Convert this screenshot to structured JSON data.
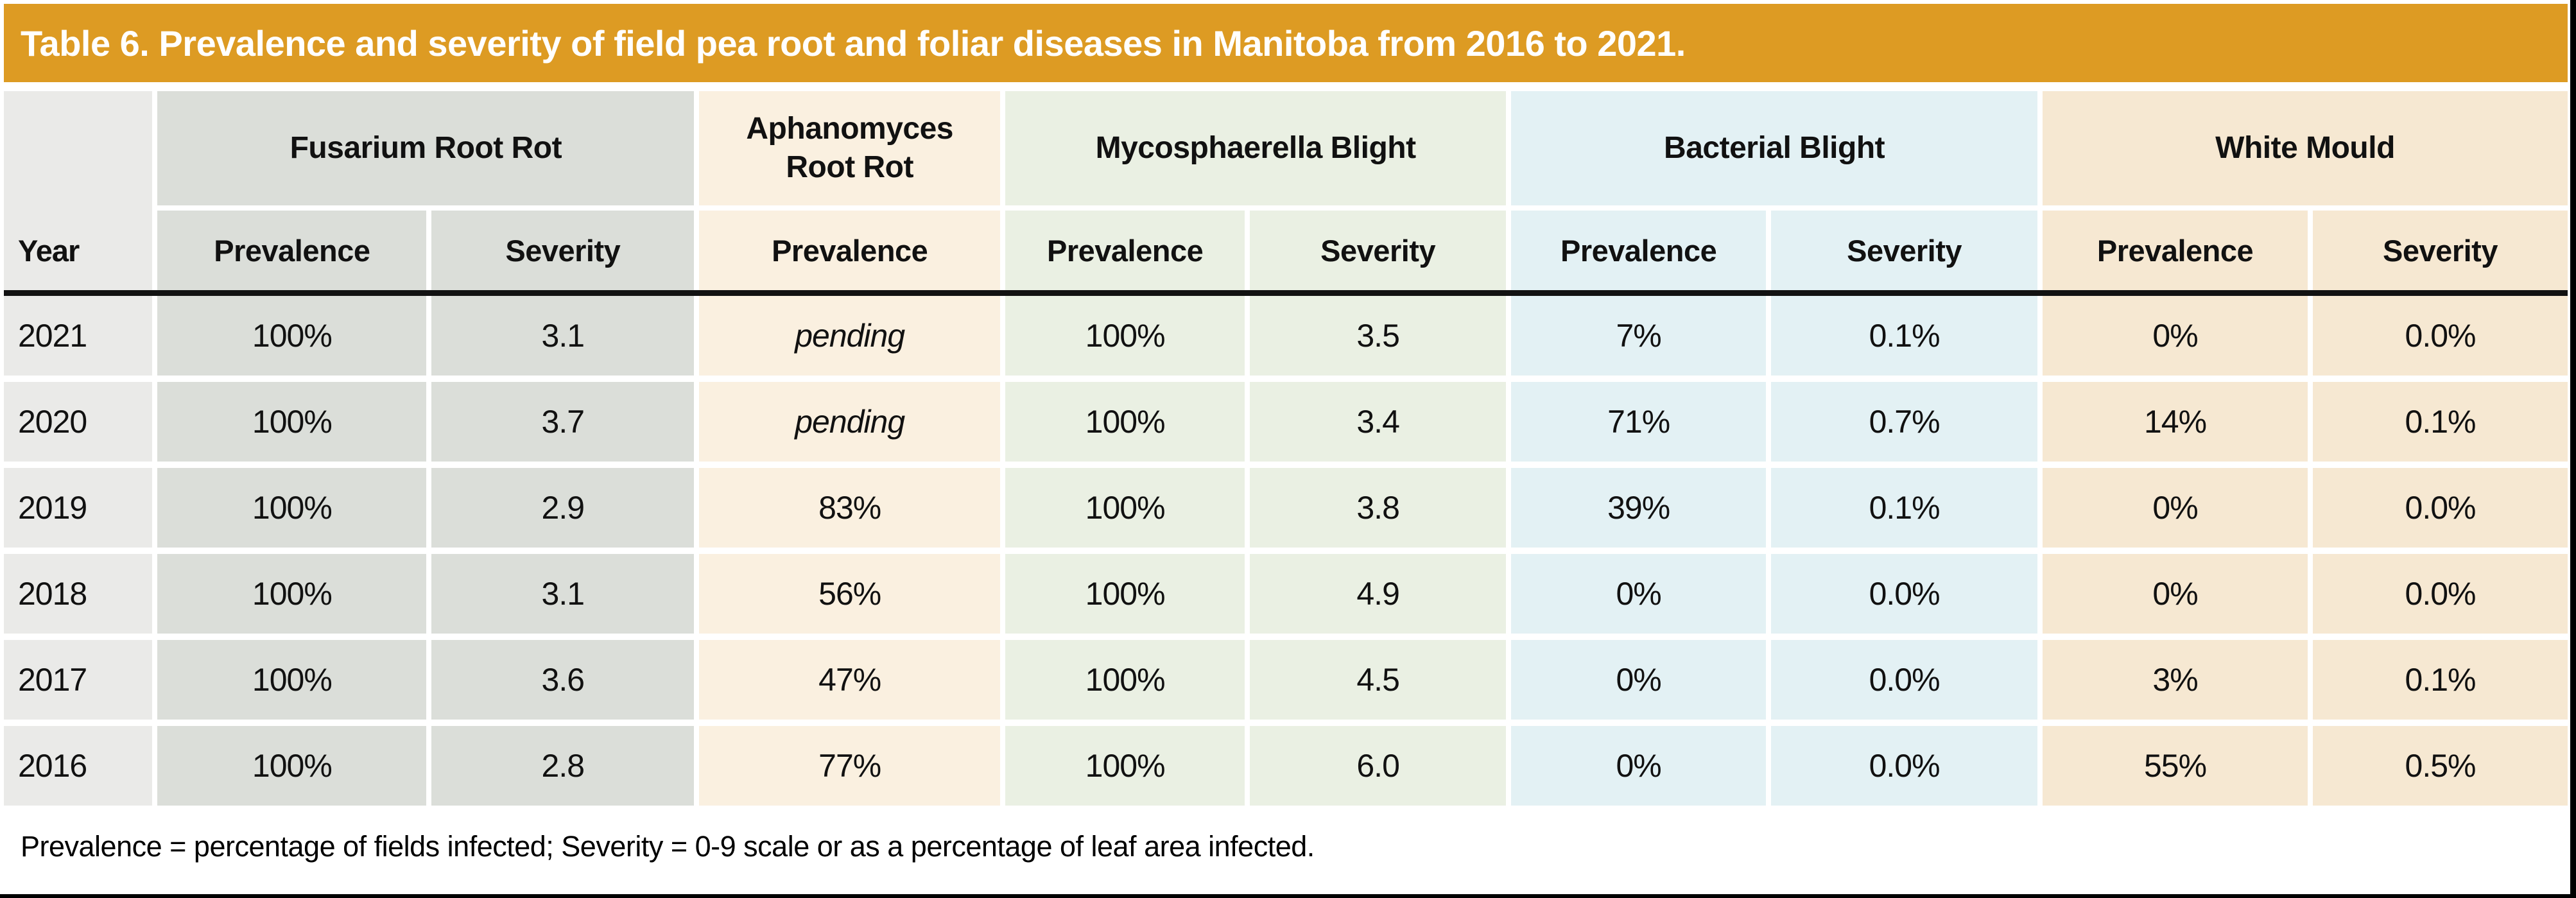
{
  "title": "Table 6. Prevalence and severity of field pea root and foliar diseases in Manitoba from 2016 to 2021.",
  "footnote": "Prevalence = percentage of fields infected; Severity = 0-9 scale or as a percentage of leaf area infected.",
  "colors": {
    "title_bar": "#dd9b23",
    "year_column": "#eaeae8",
    "fusarium": "#dbded9",
    "aphanomyces": "#faf0e0",
    "mycosphaerella": "#eaf0e3",
    "bacterial": "#e3f1f4",
    "white_mould": "#f6e8d2"
  },
  "header": {
    "year_label": "Year",
    "groups": [
      {
        "label": "Fusarium Root Rot",
        "subheaders": [
          "Prevalence",
          "Severity"
        ]
      },
      {
        "label": "Aphanomyces\nRoot Rot",
        "subheaders": [
          "Prevalence"
        ]
      },
      {
        "label": "Mycosphaerella Blight",
        "subheaders": [
          "Prevalence",
          "Severity"
        ]
      },
      {
        "label": "Bacterial Blight",
        "subheaders": [
          "Prevalence",
          "Severity"
        ]
      },
      {
        "label": "White Mould",
        "subheaders": [
          "Prevalence",
          "Severity"
        ]
      }
    ]
  },
  "rows": [
    {
      "year": "2021",
      "fusarium": {
        "prevalence": "100%",
        "severity": "3.1"
      },
      "aphanomyces": {
        "prevalence": "pending"
      },
      "mycosphaerella": {
        "prevalence": "100%",
        "severity": "3.5"
      },
      "bacterial": {
        "prevalence": "7%",
        "severity": "0.1%"
      },
      "white_mould": {
        "prevalence": "0%",
        "severity": "0.0%"
      }
    },
    {
      "year": "2020",
      "fusarium": {
        "prevalence": "100%",
        "severity": "3.7"
      },
      "aphanomyces": {
        "prevalence": "pending"
      },
      "mycosphaerella": {
        "prevalence": "100%",
        "severity": "3.4"
      },
      "bacterial": {
        "prevalence": "71%",
        "severity": "0.7%"
      },
      "white_mould": {
        "prevalence": "14%",
        "severity": "0.1%"
      }
    },
    {
      "year": "2019",
      "fusarium": {
        "prevalence": "100%",
        "severity": "2.9"
      },
      "aphanomyces": {
        "prevalence": "83%"
      },
      "mycosphaerella": {
        "prevalence": "100%",
        "severity": "3.8"
      },
      "bacterial": {
        "prevalence": "39%",
        "severity": "0.1%"
      },
      "white_mould": {
        "prevalence": "0%",
        "severity": "0.0%"
      }
    },
    {
      "year": "2018",
      "fusarium": {
        "prevalence": "100%",
        "severity": "3.1"
      },
      "aphanomyces": {
        "prevalence": "56%"
      },
      "mycosphaerella": {
        "prevalence": "100%",
        "severity": "4.9"
      },
      "bacterial": {
        "prevalence": "0%",
        "severity": "0.0%"
      },
      "white_mould": {
        "prevalence": "0%",
        "severity": "0.0%"
      }
    },
    {
      "year": "2017",
      "fusarium": {
        "prevalence": "100%",
        "severity": "3.6"
      },
      "aphanomyces": {
        "prevalence": "47%"
      },
      "mycosphaerella": {
        "prevalence": "100%",
        "severity": "4.5"
      },
      "bacterial": {
        "prevalence": "0%",
        "severity": "0.0%"
      },
      "white_mould": {
        "prevalence": "3%",
        "severity": "0.1%"
      }
    },
    {
      "year": "2016",
      "fusarium": {
        "prevalence": "100%",
        "severity": "2.8"
      },
      "aphanomyces": {
        "prevalence": "77%"
      },
      "mycosphaerella": {
        "prevalence": "100%",
        "severity": "6.0"
      },
      "bacterial": {
        "prevalence": "0%",
        "severity": "0.0%"
      },
      "white_mould": {
        "prevalence": "55%",
        "severity": "0.5%"
      }
    }
  ]
}
